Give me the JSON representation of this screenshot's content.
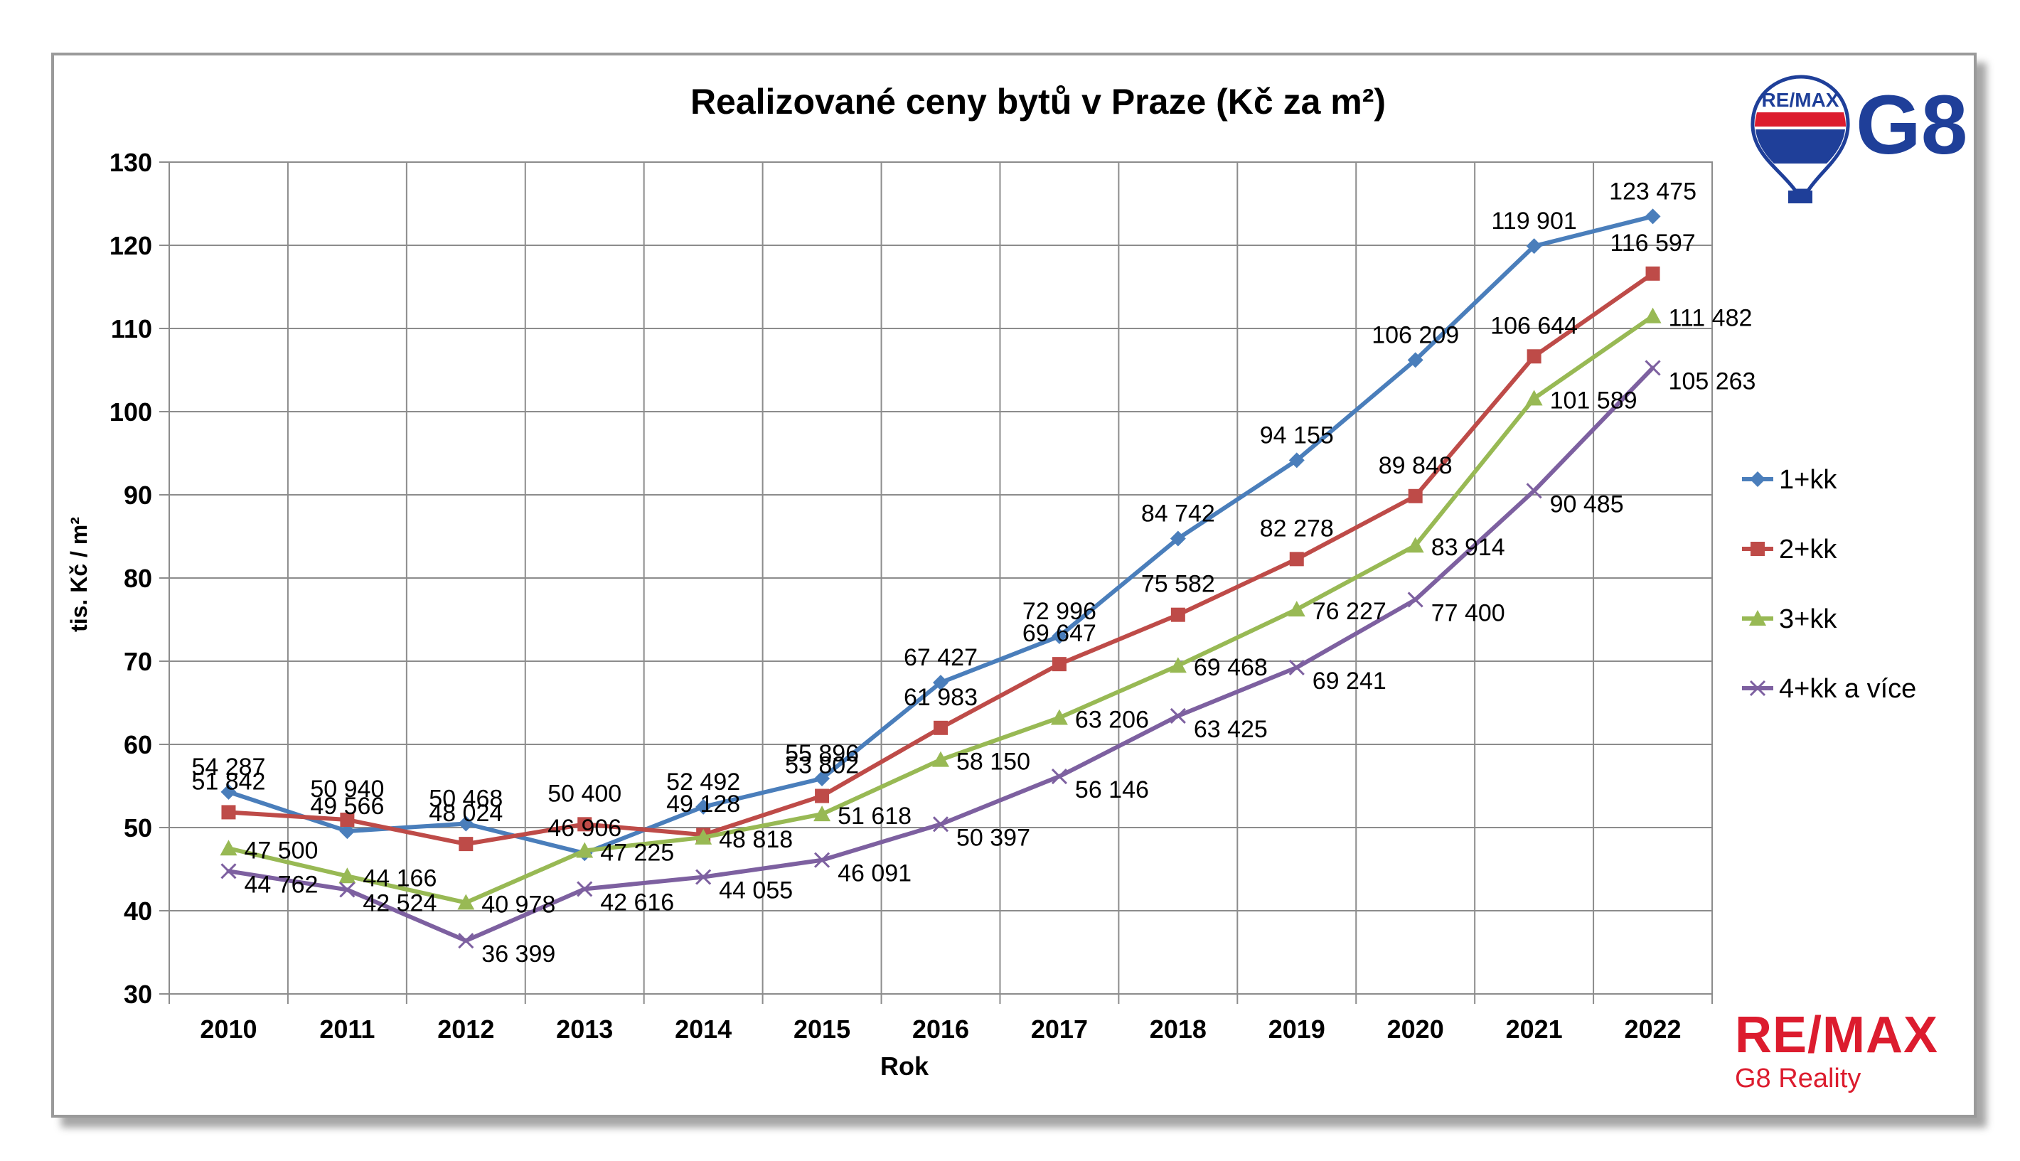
{
  "chart_data": {
    "type": "line",
    "title": "Realizované ceny bytů v Praze (Kč za m²)",
    "xlabel": "Rok",
    "ylabel": "tis. Kč / m²",
    "ylim": [
      30,
      130
    ],
    "yticks": [
      "30",
      "40",
      "50",
      "60",
      "70",
      "80",
      "90",
      "100",
      "110",
      "120",
      "130"
    ],
    "categories": [
      "2010",
      "2011",
      "2012",
      "2013",
      "2014",
      "2015",
      "2016",
      "2017",
      "2018",
      "2019",
      "2020",
      "2021",
      "2022"
    ],
    "grid": true,
    "legend_position": "right",
    "series": [
      {
        "name": "1+kk",
        "color": "#4a7ebb",
        "marker": "diamond",
        "values": [
          54.287,
          49.566,
          50.468,
          46.906,
          52.492,
          55.896,
          67.427,
          72.996,
          84.742,
          94.155,
          106.209,
          119.901,
          123.475
        ],
        "labels": [
          "54 287",
          "49 566",
          "50 468",
          "46 906",
          "52 492",
          "55 896",
          "67 427",
          "72 996",
          "84 742",
          "94 155",
          "106 209",
          "119 901",
          "123 475"
        ]
      },
      {
        "name": "2+kk",
        "color": "#be4b48",
        "marker": "square",
        "values": [
          51.842,
          50.94,
          48.024,
          50.4,
          49.128,
          53.802,
          61.983,
          69.647,
          75.582,
          82.278,
          89.848,
          106.644,
          116.597
        ],
        "labels": [
          "51 842",
          "50 940",
          "48 024",
          "50 400",
          "49 128",
          "53 802",
          "61 983",
          "69 647",
          "75 582",
          "82 278",
          "89 848",
          "106 644",
          "116 597"
        ]
      },
      {
        "name": "3+kk",
        "color": "#98b954",
        "marker": "triangle",
        "values": [
          47.5,
          44.166,
          40.978,
          47.225,
          48.818,
          51.618,
          58.15,
          63.206,
          69.468,
          76.227,
          83.914,
          101.589,
          111.482
        ],
        "labels": [
          "47 500",
          "44 166",
          "40 978",
          "47 225",
          "48 818",
          "51 618",
          "58 150",
          "63 206",
          "69 468",
          "76 227",
          "83 914",
          "101 589",
          "111 482"
        ]
      },
      {
        "name": "4+kk a více",
        "color": "#7d60a0",
        "marker": "x",
        "values": [
          44.762,
          42.524,
          36.399,
          42.616,
          44.055,
          46.091,
          50.397,
          56.146,
          63.425,
          69.241,
          77.4,
          90.485,
          105.263
        ],
        "labels": [
          "44 762",
          "42 524",
          "36 399",
          "42 616",
          "44 055",
          "46 091",
          "50 397",
          "56 146",
          "63 425",
          "69 241",
          "77 400",
          "90 485",
          "105 263"
        ]
      }
    ]
  },
  "logo": {
    "balloon_text": "RE/MAX",
    "brand": "G8",
    "wordmark": "RE/MAX",
    "subtitle": "G8 Reality",
    "brand_color": "#1f3f99",
    "red_color": "#dc1c2e"
  }
}
